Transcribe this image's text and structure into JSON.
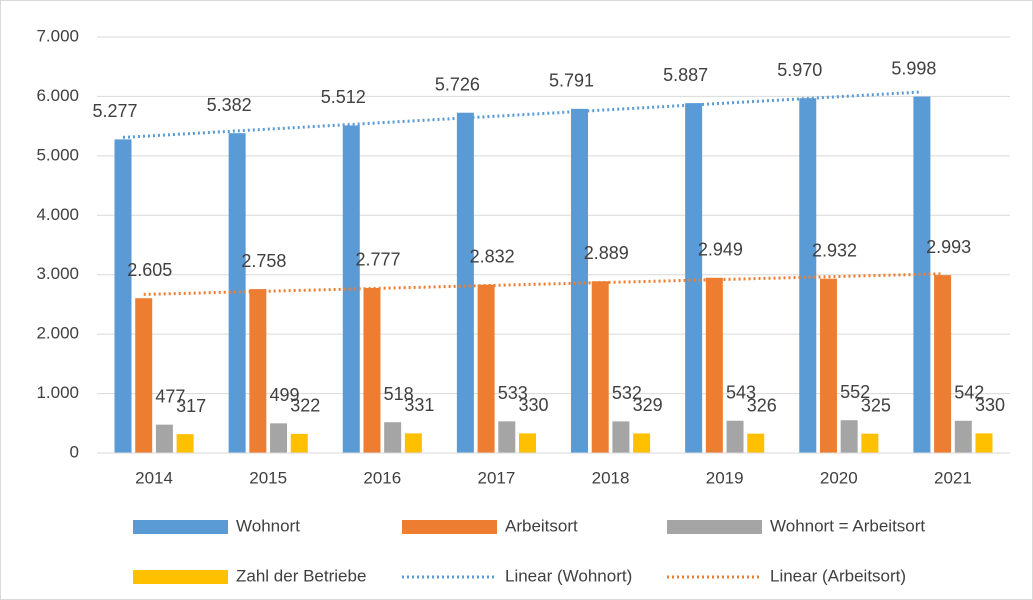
{
  "chart_data": {
    "type": "bar",
    "categories": [
      "2014",
      "2015",
      "2016",
      "2017",
      "2018",
      "2019",
      "2020",
      "2021"
    ],
    "series": [
      {
        "name": "Wohnort",
        "color": "#5b9bd5",
        "values": [
          5277,
          5382,
          5512,
          5726,
          5791,
          5887,
          5970,
          5998
        ],
        "value_labels": [
          "5.277",
          "5.382",
          "5.512",
          "5.726",
          "5.791",
          "5.887",
          "5.970",
          "5.998"
        ]
      },
      {
        "name": "Arbeitsort",
        "color": "#ed7d31",
        "values": [
          2605,
          2758,
          2777,
          2832,
          2889,
          2949,
          2932,
          2993
        ],
        "value_labels": [
          "2.605",
          "2.758",
          "2.777",
          "2.832",
          "2.889",
          "2.949",
          "2.932",
          "2.993"
        ]
      },
      {
        "name": "Wohnort = Arbeitsort",
        "color": "#a5a5a5",
        "values": [
          477,
          499,
          518,
          533,
          532,
          543,
          552,
          542
        ]
      },
      {
        "name": "Zahl der Betriebe",
        "color": "#ffc000",
        "values": [
          317,
          322,
          331,
          330,
          329,
          326,
          325,
          330
        ]
      }
    ],
    "trendlines": [
      {
        "name": "Linear (Wohnort)",
        "series": 0,
        "color": "#5b9bd5"
      },
      {
        "name": "Linear (Arbeitsort)",
        "series": 1,
        "color": "#ed7d31"
      }
    ],
    "ylim": [
      0,
      7000
    ],
    "yticks": [
      {
        "value": 0,
        "label": "0"
      },
      {
        "value": 1000,
        "label": "1.000"
      },
      {
        "value": 2000,
        "label": "2.000"
      },
      {
        "value": 3000,
        "label": "3.000"
      },
      {
        "value": 4000,
        "label": "4.000"
      },
      {
        "value": 5000,
        "label": "5.000"
      },
      {
        "value": 6000,
        "label": "6.000"
      },
      {
        "value": 7000,
        "label": "7.000"
      }
    ],
    "grid": true
  }
}
